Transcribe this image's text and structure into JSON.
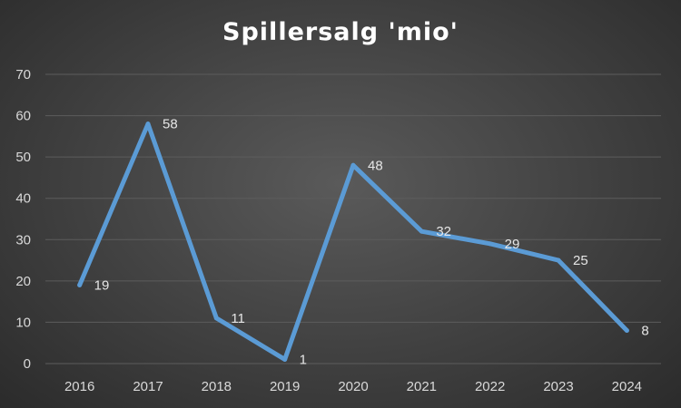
{
  "chart_data": {
    "type": "line",
    "title": "Spillersalg 'mio'",
    "categories": [
      "2016",
      "2017",
      "2018",
      "2019",
      "2020",
      "2021",
      "2022",
      "2023",
      "2024"
    ],
    "series": [
      {
        "values": [
          19,
          58,
          11,
          1,
          48,
          32,
          29,
          25,
          8
        ]
      }
    ],
    "ylim": [
      0,
      70
    ],
    "yticks": [
      0,
      10,
      20,
      30,
      40,
      50,
      60,
      70
    ],
    "grid": true,
    "legend": "none",
    "data_labels": true,
    "colors": {
      "line": "#5b9bd5",
      "gridline": "#5c5c5c",
      "background": "#404040"
    }
  }
}
